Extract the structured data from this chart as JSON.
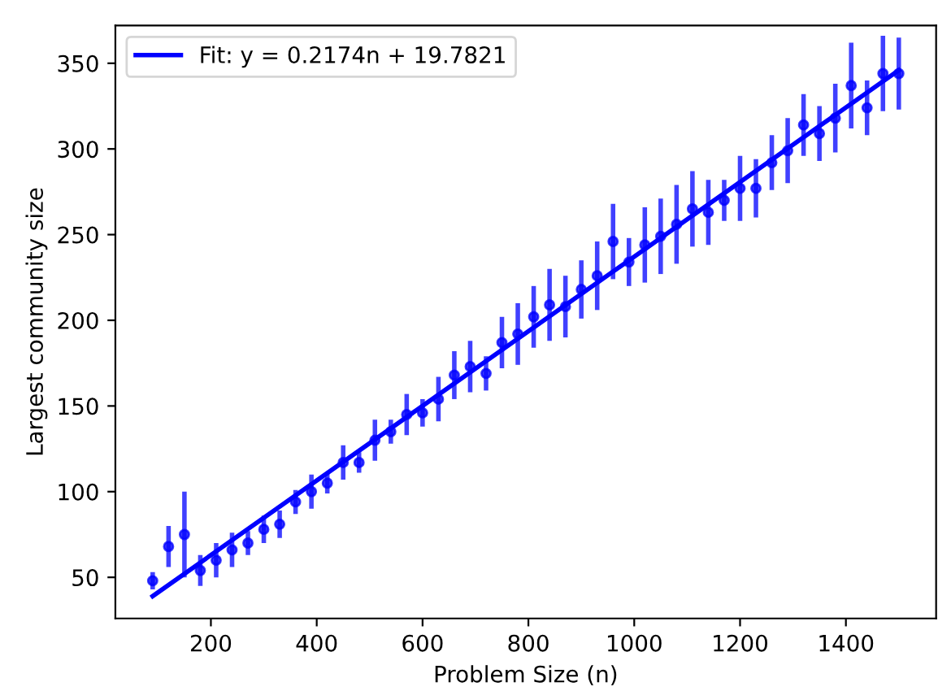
{
  "chart_data": {
    "type": "scatter",
    "xlabel": "Problem Size (n)",
    "ylabel": "Largest community size",
    "xlim": [
      19.5,
      1570.5
    ],
    "xticks": [
      200,
      400,
      600,
      800,
      1000,
      1200,
      1400
    ],
    "ylim": [
      26,
      372
    ],
    "yticks": [
      50,
      100,
      150,
      200,
      250,
      300,
      350
    ],
    "grid": false,
    "legend": "top left",
    "series": [
      {
        "color": "#0000ff",
        "marker": "circle",
        "x": [
          90,
          120,
          150,
          180,
          210,
          240,
          270,
          300,
          330,
          360,
          390,
          420,
          450,
          480,
          510,
          540,
          570,
          600,
          630,
          660,
          690,
          720,
          750,
          780,
          810,
          840,
          870,
          900,
          930,
          960,
          990,
          1020,
          1050,
          1080,
          1110,
          1140,
          1170,
          1200,
          1230,
          1260,
          1290,
          1320,
          1350,
          1380,
          1410,
          1440,
          1470,
          1500
        ],
        "values": [
          48,
          68,
          75,
          54,
          60,
          66,
          70,
          78,
          81,
          94,
          100,
          105,
          117,
          117,
          130,
          135,
          145,
          146,
          154,
          168,
          173,
          169,
          187,
          192,
          202,
          209,
          208,
          218,
          226,
          246,
          234,
          244,
          249,
          256,
          265,
          263,
          270,
          277,
          277,
          292,
          299,
          314,
          309,
          318,
          337,
          324,
          344,
          344
        ],
        "errors": [
          5,
          12,
          25,
          9,
          10,
          10,
          7,
          8,
          8,
          7,
          10,
          6,
          10,
          6,
          12,
          7,
          12,
          8,
          13,
          14,
          15,
          10,
          15,
          18,
          18,
          21,
          18,
          17,
          20,
          22,
          14,
          22,
          22,
          23,
          22,
          19,
          12,
          19,
          17,
          16,
          19,
          18,
          16,
          20,
          25,
          16,
          22,
          21
        ]
      },
      {
        "type": "line",
        "name": "Fit: y = 0.2174n + 19.7821",
        "color": "#0000ff",
        "line_style": "solid",
        "x": [
          90,
          1500
        ],
        "values": [
          39,
          346
        ]
      }
    ]
  }
}
